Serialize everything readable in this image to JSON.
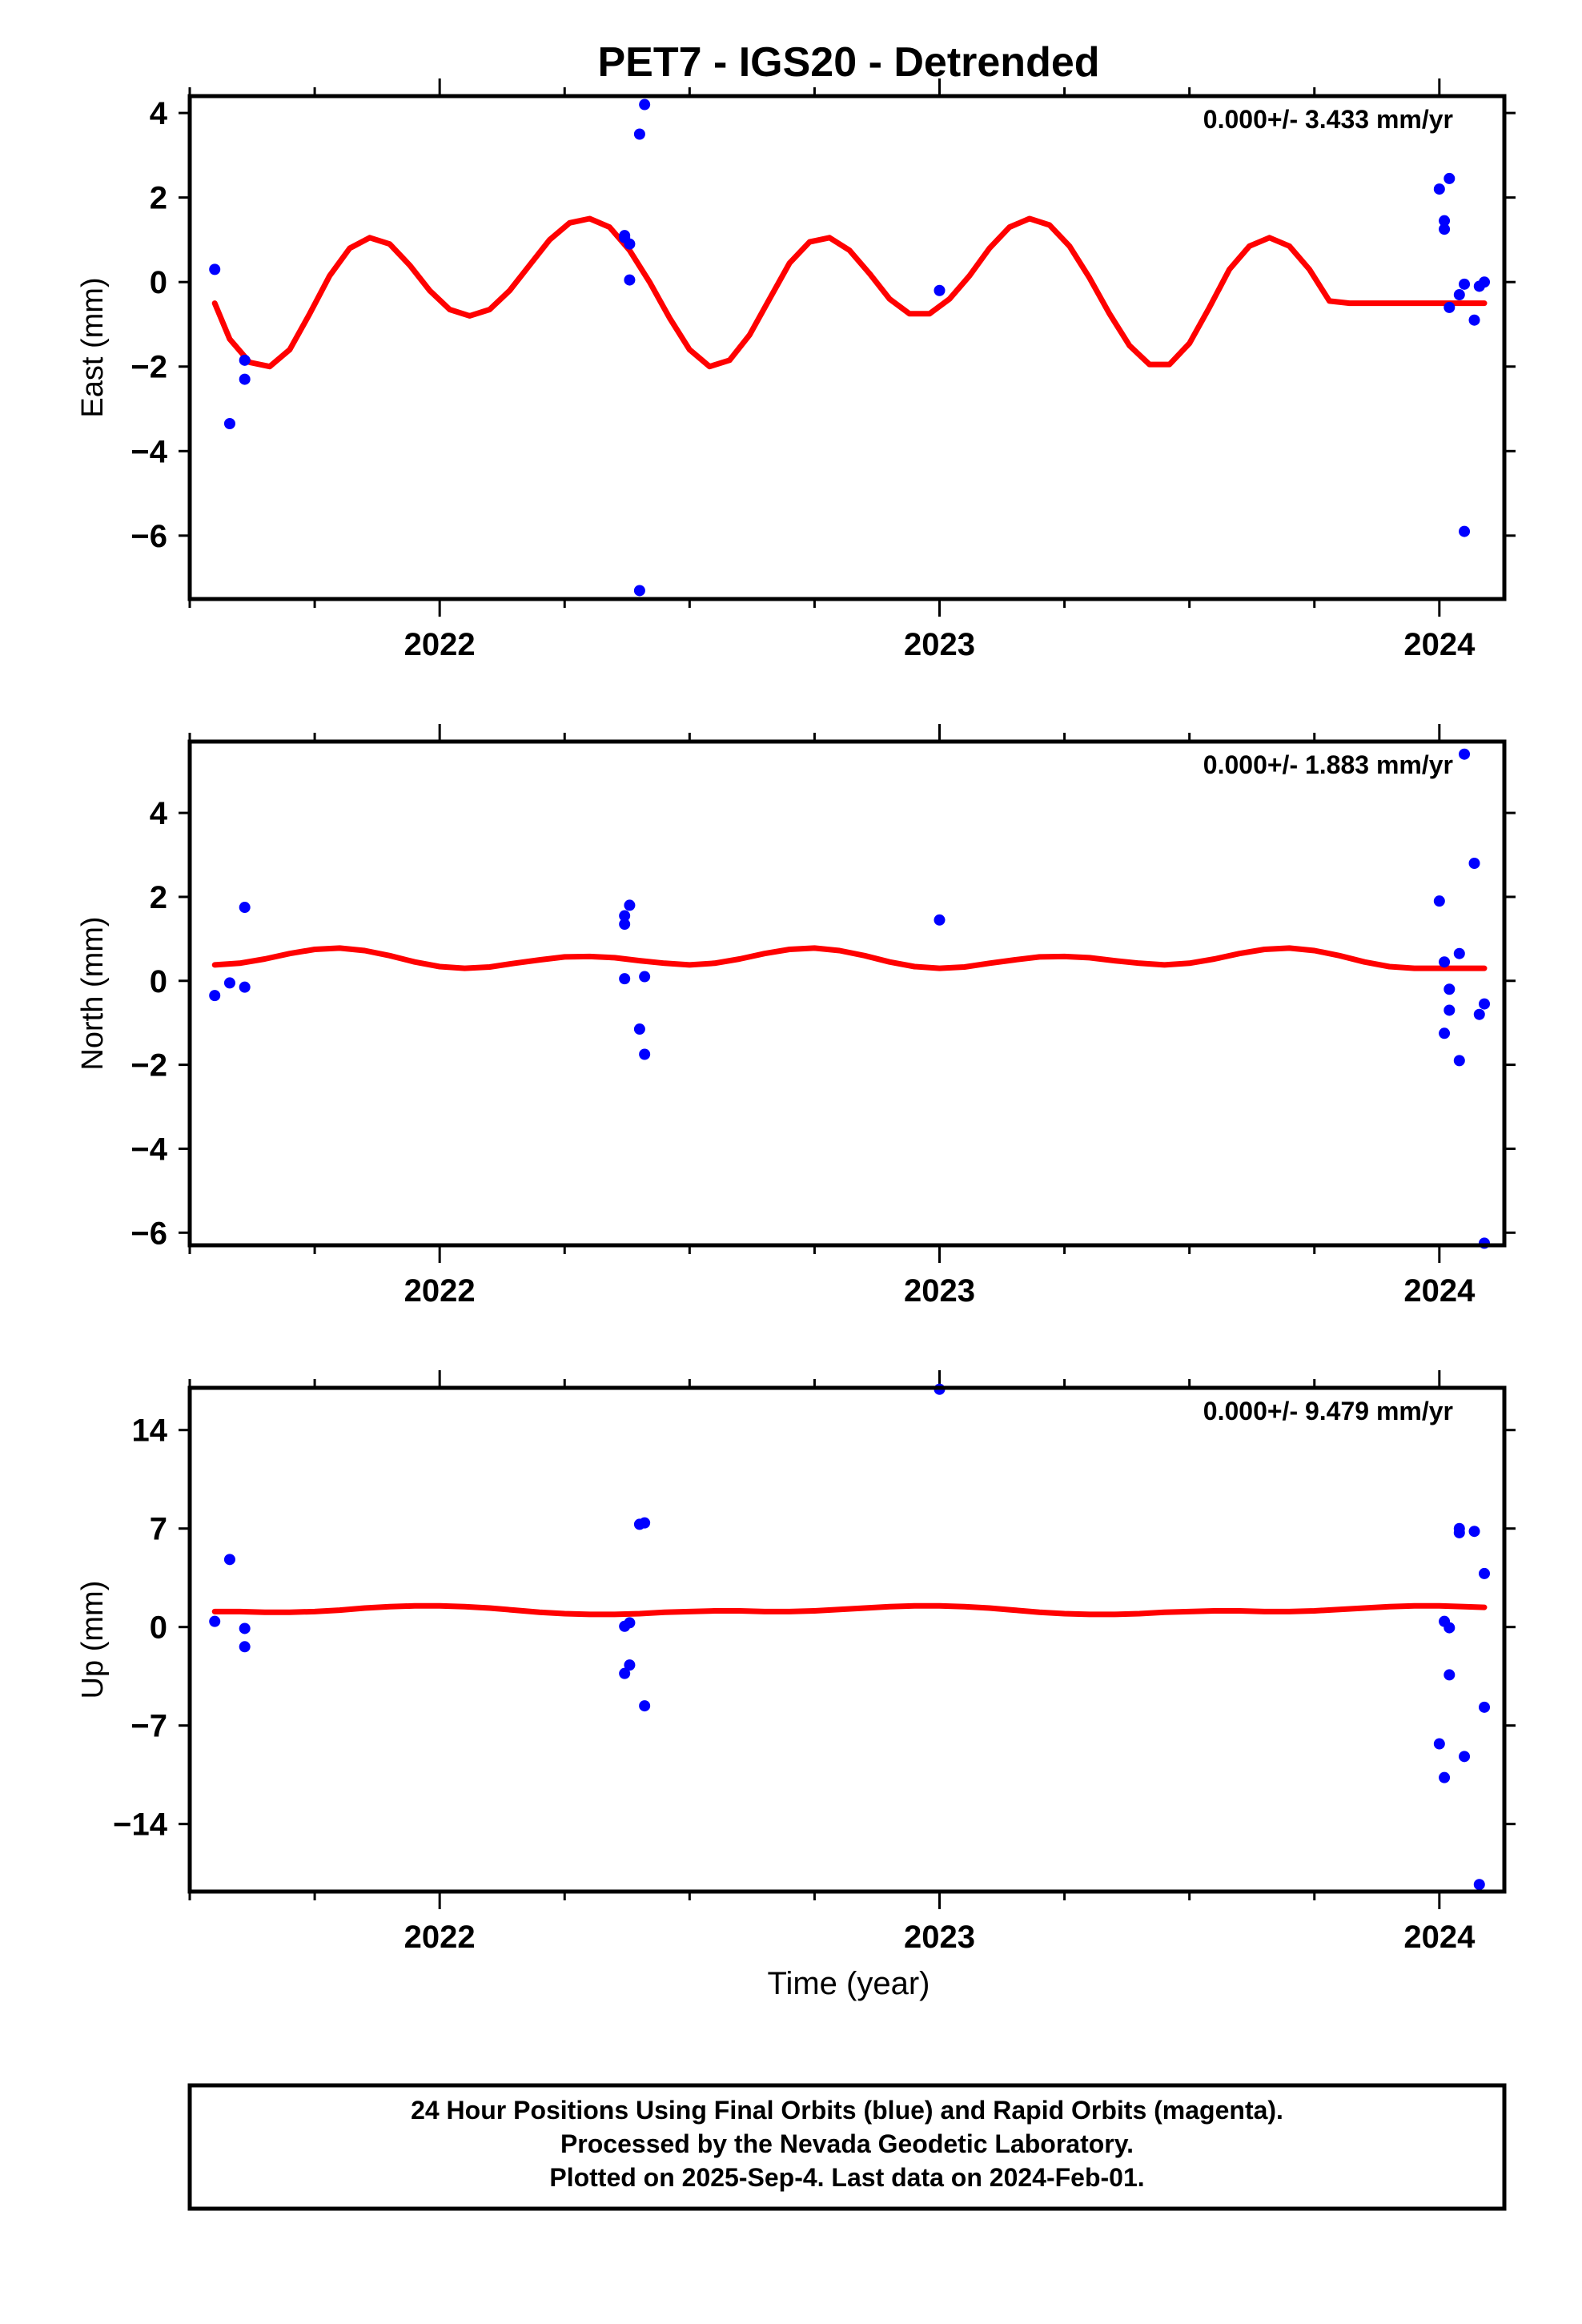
{
  "title": "PET7 - IGS20 - Detrended",
  "xlabel": "Time (year)",
  "colors": {
    "final_orbits": "#0000ff",
    "model_fit": "#ff0000",
    "frame": "#000000"
  },
  "footer": {
    "line1": "24 Hour Positions Using Final Orbits (blue) and Rapid Orbits (magenta).",
    "line2": "Processed by the Nevada Geodetic Laboratory.",
    "line3": "Plotted on 2025-Sep-4. Last data on 2024-Feb-01."
  },
  "chart_data": [
    {
      "type": "scatter",
      "ylabel": "East (mm)",
      "rate_label": "0.000+/- 3.433 mm/yr",
      "xlim": [
        2021.5,
        2024.13
      ],
      "ylim": [
        -7.5,
        4.4
      ],
      "xticks": [
        2022,
        2023,
        2024
      ],
      "yticks": [
        4,
        2,
        0,
        -2,
        -4,
        -6
      ],
      "grid": false,
      "points": [
        [
          2021.55,
          0.3
        ],
        [
          2021.58,
          -3.35
        ],
        [
          2021.61,
          -1.85
        ],
        [
          2021.61,
          -2.3
        ],
        [
          2022.37,
          1.05
        ],
        [
          2022.37,
          1.1
        ],
        [
          2022.38,
          0.9
        ],
        [
          2022.38,
          0.05
        ],
        [
          2022.4,
          3.5
        ],
        [
          2022.41,
          4.2
        ],
        [
          2022.4,
          -7.3
        ],
        [
          2023.0,
          -0.2
        ],
        [
          2024.0,
          2.2
        ],
        [
          2024.01,
          1.45
        ],
        [
          2024.01,
          1.25
        ],
        [
          2024.02,
          2.45
        ],
        [
          2024.02,
          -0.6
        ],
        [
          2024.04,
          -0.3
        ],
        [
          2024.05,
          -0.05
        ],
        [
          2024.05,
          -5.9
        ],
        [
          2024.07,
          -0.9
        ],
        [
          2024.08,
          -0.1
        ],
        [
          2024.09,
          0.0
        ]
      ],
      "model": {
        "x": [
          2021.55,
          2021.58,
          2021.62,
          2021.66,
          2021.7,
          2021.74,
          2021.78,
          2021.82,
          2021.86,
          2021.9,
          2021.94,
          2021.98,
          2022.02,
          2022.06,
          2022.1,
          2022.14,
          2022.18,
          2022.22,
          2022.26,
          2022.3,
          2022.34,
          2022.38,
          2022.42,
          2022.46,
          2022.5,
          2022.54,
          2022.58,
          2022.62,
          2022.66,
          2022.7,
          2022.74,
          2022.78,
          2022.82,
          2022.86,
          2022.9,
          2022.94,
          2022.98,
          2023.02,
          2023.06,
          2023.1,
          2023.14,
          2023.18,
          2023.22,
          2023.26,
          2023.3,
          2023.34,
          2023.38,
          2023.42,
          2023.46,
          2023.5,
          2023.54,
          2023.58,
          2023.62,
          2023.66,
          2023.7,
          2023.74,
          2023.78,
          2023.82,
          2023.86,
          2023.9,
          2023.94,
          2023.98,
          2024.02,
          2024.06,
          2024.09
        ],
        "y": [
          -0.5,
          -1.35,
          -1.9,
          -2.0,
          -1.6,
          -0.75,
          0.15,
          0.8,
          1.05,
          0.9,
          0.4,
          -0.2,
          -0.65,
          -0.8,
          -0.65,
          -0.2,
          0.4,
          1.0,
          1.4,
          1.5,
          1.3,
          0.75,
          0.0,
          -0.85,
          -1.6,
          -2.0,
          -1.85,
          -1.25,
          -0.4,
          0.45,
          0.95,
          1.05,
          0.75,
          0.2,
          -0.4,
          -0.75,
          -0.75,
          -0.4,
          0.15,
          0.8,
          1.3,
          1.5,
          1.35,
          0.85,
          0.1,
          -0.75,
          -1.5,
          -1.95,
          -1.95,
          -1.45,
          -0.6,
          0.3,
          0.85,
          1.05,
          0.85,
          0.3,
          -0.45,
          -0.5,
          -0.5,
          -0.5,
          -0.5,
          -0.5,
          -0.5,
          -0.5,
          -0.5
        ]
      }
    },
    {
      "type": "scatter",
      "ylabel": "North (mm)",
      "rate_label": "0.000+/- 1.883 mm/yr",
      "xlim": [
        2021.5,
        2024.13
      ],
      "ylim": [
        -6.3,
        5.7
      ],
      "xticks": [
        2022,
        2023,
        2024
      ],
      "yticks": [
        4,
        2,
        0,
        -2,
        -4,
        -6
      ],
      "grid": false,
      "points": [
        [
          2021.55,
          -0.35
        ],
        [
          2021.58,
          -0.05
        ],
        [
          2021.61,
          1.75
        ],
        [
          2021.61,
          -0.15
        ],
        [
          2022.37,
          1.35
        ],
        [
          2022.37,
          1.55
        ],
        [
          2022.38,
          1.8
        ],
        [
          2022.37,
          0.05
        ],
        [
          2022.4,
          -1.15
        ],
        [
          2022.41,
          -1.75
        ],
        [
          2022.41,
          0.1
        ],
        [
          2023.0,
          1.45
        ],
        [
          2024.0,
          1.9
        ],
        [
          2024.01,
          0.45
        ],
        [
          2024.01,
          -1.25
        ],
        [
          2024.02,
          -0.2
        ],
        [
          2024.02,
          -0.7
        ],
        [
          2024.04,
          0.65
        ],
        [
          2024.04,
          -1.9
        ],
        [
          2024.05,
          5.4
        ],
        [
          2024.07,
          2.8
        ],
        [
          2024.08,
          -0.8
        ],
        [
          2024.09,
          -0.55
        ],
        [
          2024.09,
          -6.25
        ]
      ],
      "model": {
        "x": [
          2021.55,
          2021.6,
          2021.65,
          2021.7,
          2021.75,
          2021.8,
          2021.85,
          2021.9,
          2021.95,
          2022.0,
          2022.05,
          2022.1,
          2022.15,
          2022.2,
          2022.25,
          2022.3,
          2022.35,
          2022.4,
          2022.45,
          2022.5,
          2022.55,
          2022.6,
          2022.65,
          2022.7,
          2022.75,
          2022.8,
          2022.85,
          2022.9,
          2022.95,
          2023.0,
          2023.05,
          2023.1,
          2023.15,
          2023.2,
          2023.25,
          2023.3,
          2023.35,
          2023.4,
          2023.45,
          2023.5,
          2023.55,
          2023.6,
          2023.65,
          2023.7,
          2023.75,
          2023.8,
          2023.85,
          2023.9,
          2023.95,
          2024.0,
          2024.05,
          2024.09
        ],
        "y": [
          0.38,
          0.42,
          0.52,
          0.65,
          0.75,
          0.78,
          0.72,
          0.6,
          0.45,
          0.34,
          0.3,
          0.33,
          0.42,
          0.5,
          0.57,
          0.58,
          0.55,
          0.48,
          0.42,
          0.38,
          0.42,
          0.52,
          0.65,
          0.75,
          0.78,
          0.72,
          0.6,
          0.45,
          0.34,
          0.3,
          0.33,
          0.42,
          0.5,
          0.57,
          0.58,
          0.55,
          0.48,
          0.42,
          0.38,
          0.42,
          0.52,
          0.65,
          0.75,
          0.78,
          0.72,
          0.6,
          0.45,
          0.34,
          0.3,
          0.3,
          0.3,
          0.3
        ]
      }
    },
    {
      "type": "scatter",
      "ylabel": "Up (mm)",
      "rate_label": "0.000+/- 9.479 mm/yr",
      "xlim": [
        2021.5,
        2024.13
      ],
      "ylim": [
        -18.8,
        17.0
      ],
      "xticks": [
        2022,
        2023,
        2024
      ],
      "yticks": [
        14,
        7,
        0,
        -7,
        -14
      ],
      "grid": false,
      "points": [
        [
          2021.55,
          0.4
        ],
        [
          2021.58,
          4.8
        ],
        [
          2021.61,
          -0.1
        ],
        [
          2021.61,
          -1.4
        ],
        [
          2022.37,
          -3.3
        ],
        [
          2022.38,
          -2.7
        ],
        [
          2022.37,
          0.05
        ],
        [
          2022.38,
          0.3
        ],
        [
          2022.4,
          7.3
        ],
        [
          2022.41,
          7.4
        ],
        [
          2022.41,
          -5.6
        ],
        [
          2023.0,
          16.9
        ],
        [
          2024.0,
          -8.3
        ],
        [
          2024.01,
          0.4
        ],
        [
          2024.01,
          -10.7
        ],
        [
          2024.02,
          -0.05
        ],
        [
          2024.02,
          -3.4
        ],
        [
          2024.04,
          6.7
        ],
        [
          2024.04,
          7.0
        ],
        [
          2024.05,
          -9.2
        ],
        [
          2024.07,
          6.8
        ],
        [
          2024.08,
          -18.3
        ],
        [
          2024.09,
          3.8
        ],
        [
          2024.09,
          -5.7
        ]
      ],
      "model": {
        "x": [
          2021.55,
          2021.6,
          2021.65,
          2021.7,
          2021.75,
          2021.8,
          2021.85,
          2021.9,
          2021.95,
          2022.0,
          2022.05,
          2022.1,
          2022.15,
          2022.2,
          2022.25,
          2022.3,
          2022.35,
          2022.4,
          2022.45,
          2022.5,
          2022.55,
          2022.6,
          2022.65,
          2022.7,
          2022.75,
          2022.8,
          2022.85,
          2022.9,
          2022.95,
          2023.0,
          2023.05,
          2023.1,
          2023.15,
          2023.2,
          2023.25,
          2023.3,
          2023.35,
          2023.4,
          2023.45,
          2023.5,
          2023.55,
          2023.6,
          2023.65,
          2023.7,
          2023.75,
          2023.8,
          2023.85,
          2023.9,
          2023.95,
          2024.0,
          2024.05,
          2024.09
        ],
        "y": [
          1.1,
          1.1,
          1.05,
          1.05,
          1.1,
          1.2,
          1.35,
          1.45,
          1.5,
          1.5,
          1.45,
          1.35,
          1.2,
          1.05,
          0.95,
          0.9,
          0.9,
          0.95,
          1.05,
          1.1,
          1.15,
          1.15,
          1.1,
          1.1,
          1.15,
          1.25,
          1.35,
          1.45,
          1.5,
          1.5,
          1.45,
          1.35,
          1.2,
          1.05,
          0.95,
          0.9,
          0.9,
          0.95,
          1.05,
          1.1,
          1.15,
          1.15,
          1.1,
          1.1,
          1.15,
          1.25,
          1.35,
          1.45,
          1.5,
          1.5,
          1.45,
          1.4
        ]
      }
    }
  ]
}
